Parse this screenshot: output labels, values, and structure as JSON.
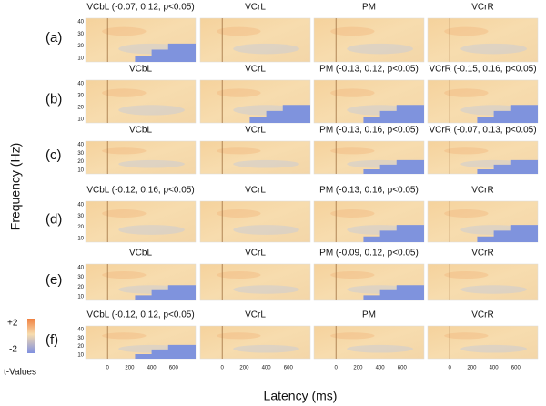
{
  "y_axis_label": "Frequency (Hz)",
  "x_axis_label": "Latency (ms)",
  "colorbar": {
    "max_label": "+2",
    "min_label": "-2",
    "title": "t-Values"
  },
  "yticks": [
    "40",
    "30",
    "20",
    "10"
  ],
  "xticks": [
    "0",
    "200",
    "400",
    "600"
  ],
  "rows": [
    {
      "label": "(a)",
      "panels": [
        "VCbL (-0.07, 0.12, p<0.05)",
        "VCrL",
        "PM",
        "VCrR"
      ]
    },
    {
      "label": "(b)",
      "panels": [
        "VCbL",
        "VCrL",
        "PM (-0.13, 0.12, p<0.05)",
        "VCrR (-0.15, 0.16, p<0.05)"
      ]
    },
    {
      "label": "(c)",
      "panels": [
        "VCbL",
        "VCrL",
        "PM (-0.13, 0.16, p<0.05)",
        "VCrR (-0.07, 0.13, p<0.05)"
      ]
    },
    {
      "label": "(d)",
      "panels": [
        "VCbL (-0.12, 0.16, p<0.05)",
        "VCrL",
        "PM (-0.13, 0.16, p<0.05)",
        "VCrR"
      ]
    },
    {
      "label": "(e)",
      "panels": [
        "VCbL",
        "VCrL",
        "PM (-0.09, 0.12, p<0.05)",
        "VCrR"
      ]
    },
    {
      "label": "(f)",
      "panels": [
        "VCbL (-0.12, 0.12, p<0.05)",
        "VCrL",
        "PM",
        "VCrR"
      ]
    }
  ]
}
